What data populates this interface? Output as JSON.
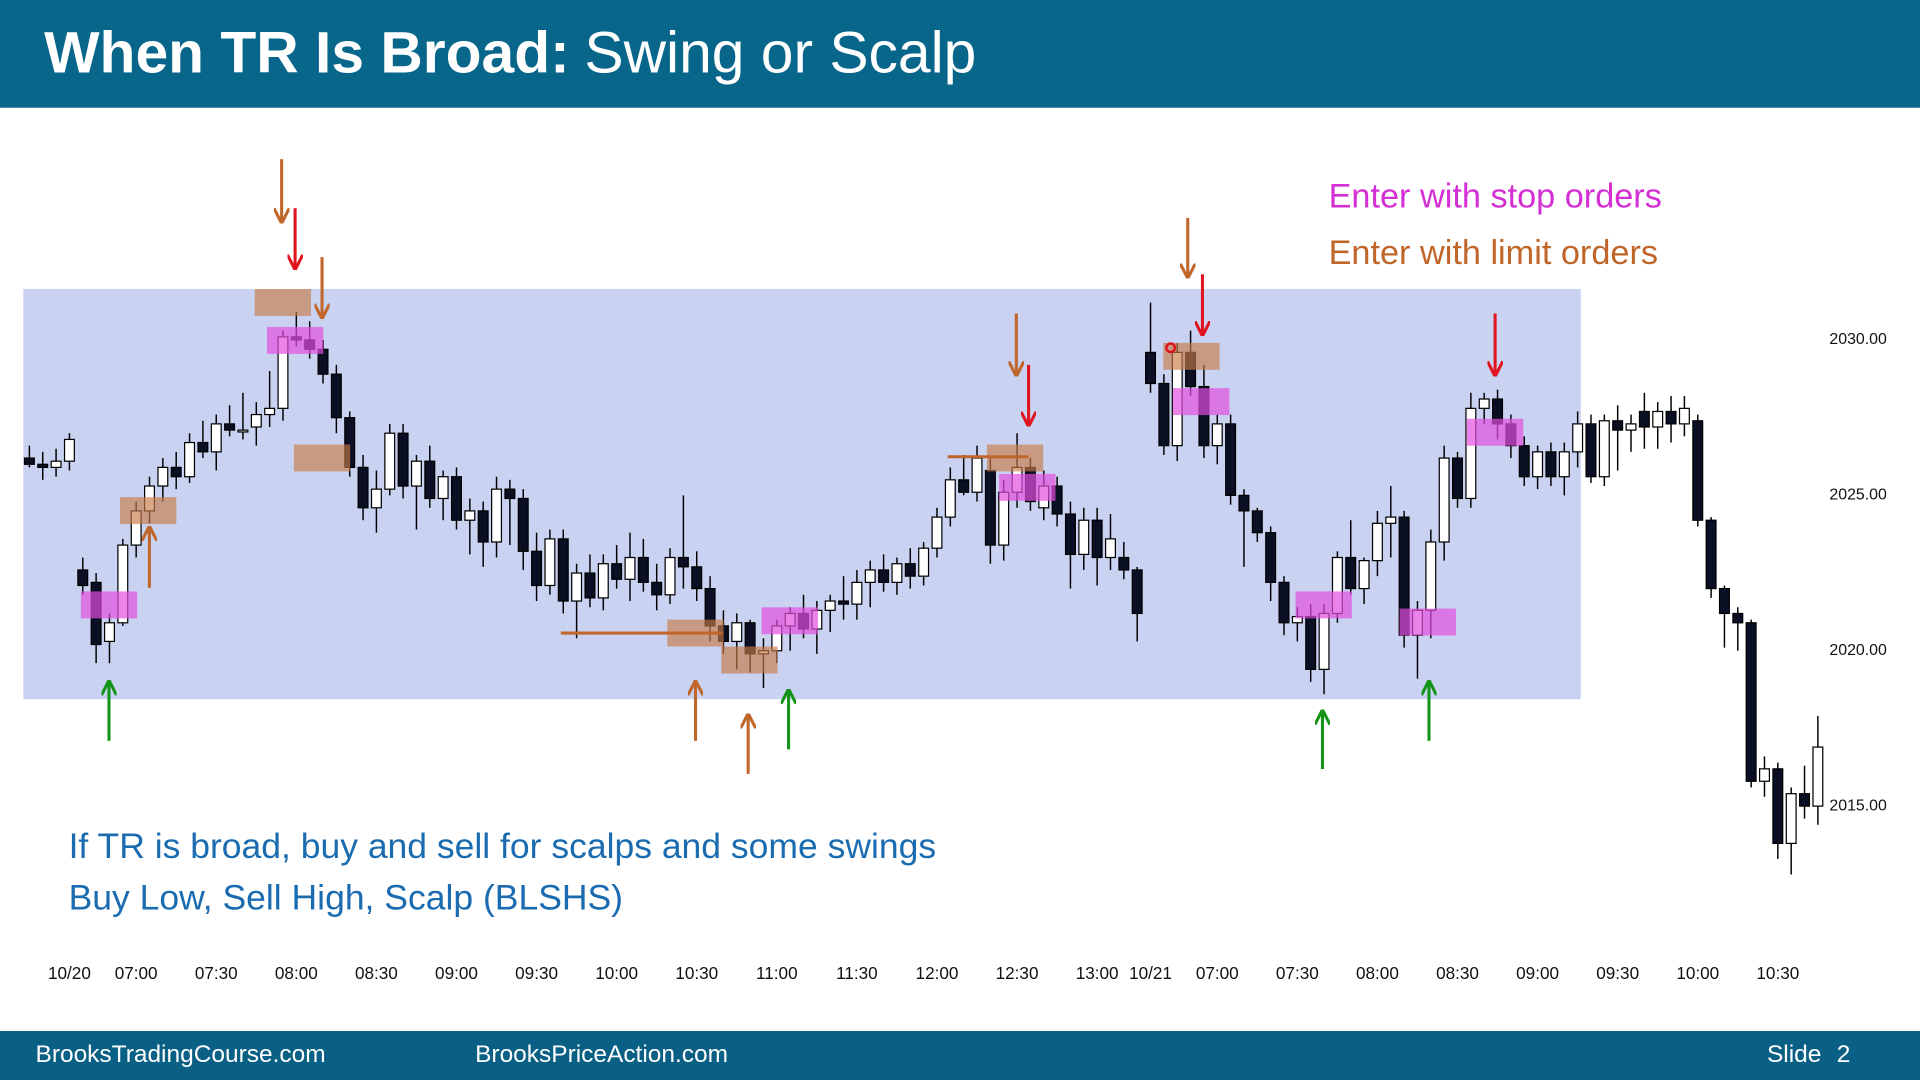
{
  "header": {
    "title_bold": "When TR Is Broad:",
    "title_rest": "Swing or Scalp"
  },
  "chart_data": {
    "type": "candlestick",
    "up_color": "#ffffff",
    "down_color": "#0b0f24",
    "ylim": [
      2010.6,
      2037.0
    ],
    "yticks": [
      {
        "value": 2015,
        "label": "2015.00"
      },
      {
        "value": 2020,
        "label": "2020.00"
      },
      {
        "value": 2025,
        "label": "2025.00"
      },
      {
        "value": 2030,
        "label": "2030.00"
      }
    ],
    "legend": [
      {
        "label": "Enter with stop orders",
        "color": "#d42fd4"
      },
      {
        "label": "Enter with limit orders",
        "color": "#c0662a"
      }
    ],
    "annotations": [
      "If TR is broad, buy and sell for scalps and some swings",
      "Buy Low, Sell High, Scalp (BLSHS)"
    ],
    "categories": [
      null,
      null,
      null,
      "10/20",
      null,
      null,
      null,
      null,
      "07:00",
      null,
      null,
      null,
      null,
      null,
      "07:30",
      null,
      null,
      null,
      null,
      null,
      "08:00",
      null,
      null,
      null,
      null,
      null,
      "08:30",
      null,
      null,
      null,
      null,
      null,
      "09:00",
      null,
      null,
      null,
      null,
      null,
      "09:30",
      null,
      null,
      null,
      null,
      null,
      "10:00",
      null,
      null,
      null,
      null,
      null,
      "10:30",
      null,
      null,
      null,
      null,
      null,
      "11:00",
      null,
      null,
      null,
      null,
      null,
      "11:30",
      null,
      null,
      null,
      null,
      null,
      "12:00",
      null,
      null,
      null,
      null,
      null,
      "12:30",
      null,
      null,
      null,
      null,
      null,
      "13:00",
      null,
      null,
      null,
      "10/21",
      null,
      null,
      null,
      null,
      "07:00",
      null,
      null,
      null,
      null,
      null,
      "07:30",
      null,
      null,
      null,
      null,
      null,
      "08:00",
      null,
      null,
      null,
      null,
      null,
      "08:30",
      null,
      null,
      null,
      null,
      null,
      "09:00",
      null,
      null,
      null,
      null,
      null,
      "09:30",
      null,
      null,
      null,
      null,
      null,
      "10:00",
      null,
      null,
      null,
      null,
      null,
      "10:30",
      null,
      null,
      null
    ],
    "ohlc": [
      [
        2026.2,
        2026.6,
        2025.9,
        2026.0
      ],
      [
        2026.0,
        2026.4,
        2025.5,
        2025.9
      ],
      [
        2025.9,
        2026.5,
        2025.6,
        2026.1
      ],
      [
        2026.1,
        2027.0,
        2025.8,
        2026.8
      ],
      [
        2022.6,
        2023.0,
        2021.8,
        2022.1
      ],
      [
        2022.2,
        2022.5,
        2019.6,
        2020.2
      ],
      [
        2020.3,
        2021.2,
        2019.6,
        2020.9
      ],
      [
        2020.9,
        2023.6,
        2020.8,
        2023.4
      ],
      [
        2023.4,
        2024.8,
        2023.0,
        2024.5
      ],
      [
        2024.5,
        2025.6,
        2024.1,
        2025.3
      ],
      [
        2025.3,
        2026.2,
        2024.8,
        2025.9
      ],
      [
        2025.9,
        2026.4,
        2025.2,
        2025.6
      ],
      [
        2025.6,
        2027.0,
        2025.4,
        2026.7
      ],
      [
        2026.7,
        2027.4,
        2026.2,
        2026.4
      ],
      [
        2026.4,
        2027.6,
        2025.8,
        2027.3
      ],
      [
        2027.3,
        2027.9,
        2026.9,
        2027.1
      ],
      [
        2027.1,
        2028.3,
        2026.8,
        2027.1
      ],
      [
        2027.2,
        2028.0,
        2026.6,
        2027.6
      ],
      [
        2027.6,
        2029.0,
        2027.2,
        2027.8
      ],
      [
        2027.8,
        2030.3,
        2027.4,
        2030.1
      ],
      [
        2030.1,
        2030.9,
        2029.8,
        2030.0
      ],
      [
        2030.0,
        2030.6,
        2029.4,
        2029.7
      ],
      [
        2029.7,
        2030.0,
        2028.6,
        2028.9
      ],
      [
        2028.9,
        2029.2,
        2027.0,
        2027.5
      ],
      [
        2027.5,
        2027.7,
        2025.6,
        2025.9
      ],
      [
        2025.9,
        2026.3,
        2024.2,
        2024.6
      ],
      [
        2024.6,
        2025.8,
        2023.8,
        2025.2
      ],
      [
        2025.2,
        2027.3,
        2025.0,
        2027.0
      ],
      [
        2027.0,
        2027.3,
        2024.9,
        2025.3
      ],
      [
        2025.3,
        2026.3,
        2023.9,
        2026.1
      ],
      [
        2026.1,
        2026.6,
        2024.6,
        2024.9
      ],
      [
        2024.9,
        2025.8,
        2024.2,
        2025.6
      ],
      [
        2025.6,
        2025.9,
        2023.9,
        2024.2
      ],
      [
        2024.2,
        2024.9,
        2023.1,
        2024.5
      ],
      [
        2024.5,
        2024.8,
        2022.7,
        2023.5
      ],
      [
        2023.5,
        2025.6,
        2023.0,
        2025.2
      ],
      [
        2025.2,
        2025.5,
        2023.4,
        2024.9
      ],
      [
        2024.9,
        2025.2,
        2022.6,
        2023.2
      ],
      [
        2023.2,
        2023.8,
        2021.6,
        2022.1
      ],
      [
        2022.1,
        2023.9,
        2021.8,
        2023.6
      ],
      [
        2023.6,
        2023.9,
        2021.2,
        2021.6
      ],
      [
        2021.6,
        2022.8,
        2020.4,
        2022.5
      ],
      [
        2022.5,
        2023.1,
        2021.4,
        2021.7
      ],
      [
        2021.7,
        2023.1,
        2021.3,
        2022.8
      ],
      [
        2022.8,
        2023.4,
        2022.0,
        2022.3
      ],
      [
        2022.3,
        2023.8,
        2021.6,
        2023.0
      ],
      [
        2023.0,
        2023.6,
        2021.9,
        2022.2
      ],
      [
        2022.2,
        2022.8,
        2021.3,
        2021.8
      ],
      [
        2021.8,
        2023.3,
        2021.5,
        2023.0
      ],
      [
        2023.0,
        2025.0,
        2022.0,
        2022.7
      ],
      [
        2022.7,
        2023.2,
        2021.6,
        2022.0
      ],
      [
        2022.0,
        2022.4,
        2020.3,
        2020.8
      ],
      [
        2020.8,
        2021.3,
        2019.9,
        2020.3
      ],
      [
        2020.3,
        2021.2,
        2019.4,
        2020.9
      ],
      [
        2020.9,
        2021.0,
        2019.3,
        2019.9
      ],
      [
        2019.9,
        2020.4,
        2018.8,
        2020.0
      ],
      [
        2020.0,
        2021.0,
        2019.6,
        2020.8
      ],
      [
        2020.8,
        2021.4,
        2020.0,
        2021.2
      ],
      [
        2021.2,
        2021.8,
        2020.4,
        2020.7
      ],
      [
        2020.7,
        2021.6,
        2019.9,
        2021.3
      ],
      [
        2021.3,
        2021.8,
        2020.6,
        2021.6
      ],
      [
        2021.6,
        2022.4,
        2021.0,
        2021.5
      ],
      [
        2021.5,
        2022.6,
        2021.0,
        2022.2
      ],
      [
        2022.2,
        2022.9,
        2021.4,
        2022.6
      ],
      [
        2022.6,
        2023.1,
        2021.9,
        2022.2
      ],
      [
        2022.2,
        2023.0,
        2021.8,
        2022.8
      ],
      [
        2022.8,
        2023.3,
        2022.0,
        2022.4
      ],
      [
        2022.4,
        2023.5,
        2022.1,
        2023.3
      ],
      [
        2023.3,
        2024.6,
        2023.0,
        2024.3
      ],
      [
        2024.3,
        2025.9,
        2024.0,
        2025.5
      ],
      [
        2025.5,
        2026.3,
        2025.0,
        2025.1
      ],
      [
        2025.1,
        2026.6,
        2024.8,
        2026.2
      ],
      [
        2025.8,
        2026.2,
        2022.8,
        2023.4
      ],
      [
        2023.4,
        2025.5,
        2022.9,
        2025.1
      ],
      [
        2025.1,
        2027.0,
        2024.6,
        2025.9
      ],
      [
        2025.9,
        2026.2,
        2024.5,
        2024.8
      ],
      [
        2024.6,
        2025.8,
        2024.2,
        2025.3
      ],
      [
        2025.3,
        2025.6,
        2024.0,
        2024.4
      ],
      [
        2024.4,
        2024.8,
        2022.0,
        2023.1
      ],
      [
        2023.1,
        2024.6,
        2022.6,
        2024.2
      ],
      [
        2024.2,
        2024.6,
        2022.1,
        2023.0
      ],
      [
        2023.0,
        2024.4,
        2022.6,
        2023.6
      ],
      [
        2023.0,
        2023.5,
        2022.3,
        2022.6
      ],
      [
        2022.6,
        2022.7,
        2020.3,
        2021.2
      ],
      [
        2029.6,
        2031.2,
        2028.3,
        2028.6
      ],
      [
        2028.6,
        2028.9,
        2026.3,
        2026.6
      ],
      [
        2026.6,
        2029.9,
        2026.1,
        2029.6
      ],
      [
        2029.6,
        2030.3,
        2028.2,
        2028.5
      ],
      [
        2028.5,
        2029.2,
        2026.2,
        2026.6
      ],
      [
        2026.6,
        2027.6,
        2026.0,
        2027.3
      ],
      [
        2027.3,
        2027.6,
        2024.7,
        2025.0
      ],
      [
        2025.0,
        2025.2,
        2022.7,
        2024.5
      ],
      [
        2024.5,
        2024.6,
        2023.5,
        2023.8
      ],
      [
        2023.8,
        2024.0,
        2021.6,
        2022.2
      ],
      [
        2022.2,
        2022.4,
        2020.5,
        2020.9
      ],
      [
        2020.9,
        2021.4,
        2020.3,
        2021.1
      ],
      [
        2021.1,
        2021.5,
        2019.0,
        2019.4
      ],
      [
        2019.4,
        2021.5,
        2018.6,
        2021.2
      ],
      [
        2021.2,
        2023.2,
        2020.9,
        2023.0
      ],
      [
        2023.0,
        2024.2,
        2021.8,
        2022.0
      ],
      [
        2022.0,
        2023.0,
        2021.5,
        2022.9
      ],
      [
        2022.9,
        2024.5,
        2022.4,
        2024.1
      ],
      [
        2024.1,
        2025.3,
        2023.0,
        2024.3
      ],
      [
        2024.3,
        2024.5,
        2020.1,
        2020.5
      ],
      [
        2020.5,
        2021.6,
        2019.1,
        2021.3
      ],
      [
        2021.3,
        2023.9,
        2020.4,
        2023.5
      ],
      [
        2023.5,
        2026.6,
        2022.9,
        2026.2
      ],
      [
        2026.2,
        2026.4,
        2024.6,
        2024.9
      ],
      [
        2024.9,
        2028.3,
        2024.6,
        2027.8
      ],
      [
        2027.8,
        2028.3,
        2027.3,
        2028.1
      ],
      [
        2028.1,
        2028.4,
        2026.8,
        2027.3
      ],
      [
        2027.3,
        2027.6,
        2026.2,
        2026.6
      ],
      [
        2026.6,
        2026.9,
        2025.3,
        2025.6
      ],
      [
        2025.6,
        2026.6,
        2025.2,
        2026.4
      ],
      [
        2026.4,
        2026.7,
        2025.3,
        2025.6
      ],
      [
        2025.6,
        2026.7,
        2025.0,
        2026.4
      ],
      [
        2026.4,
        2027.7,
        2025.9,
        2027.3
      ],
      [
        2027.3,
        2027.6,
        2025.4,
        2025.6
      ],
      [
        2025.6,
        2027.6,
        2025.3,
        2027.4
      ],
      [
        2027.4,
        2027.9,
        2025.8,
        2027.1
      ],
      [
        2027.1,
        2027.6,
        2026.4,
        2027.3
      ],
      [
        2027.7,
        2028.3,
        2026.5,
        2027.2
      ],
      [
        2027.2,
        2028.0,
        2026.5,
        2027.7
      ],
      [
        2027.7,
        2028.2,
        2026.7,
        2027.3
      ],
      [
        2027.3,
        2028.2,
        2026.9,
        2027.8
      ],
      [
        2027.4,
        2027.6,
        2024.0,
        2024.2
      ],
      [
        2024.2,
        2024.3,
        2021.7,
        2022.0
      ],
      [
        2022.0,
        2022.1,
        2020.1,
        2021.2
      ],
      [
        2021.2,
        2021.4,
        2020.0,
        2020.9
      ],
      [
        2020.9,
        2021.0,
        2015.6,
        2015.8
      ],
      [
        2015.8,
        2016.6,
        2015.3,
        2016.2
      ],
      [
        2016.2,
        2016.4,
        2013.3,
        2013.8
      ],
      [
        2013.8,
        2015.6,
        2012.8,
        2015.4
      ],
      [
        2015.4,
        2016.3,
        2014.6,
        2015.0
      ],
      [
        2015.0,
        2017.9,
        2014.4,
        2016.9
      ]
    ]
  },
  "footer": {
    "site1": "BrooksTradingCourse.com",
    "site2": "BrooksPriceAction.com",
    "slide_word": "Slide",
    "slide_number": "2"
  }
}
